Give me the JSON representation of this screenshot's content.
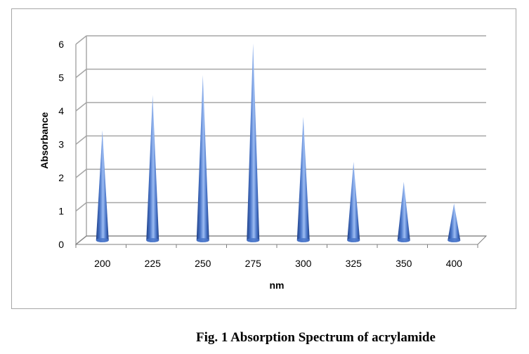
{
  "caption": "Fig. 1 Absorption Spectrum of acrylamide",
  "chart_data": {
    "type": "bar",
    "style": "3d-cone",
    "categories": [
      "200",
      "225",
      "250",
      "275",
      "300",
      "325",
      "350",
      "400"
    ],
    "values": [
      3.3,
      4.35,
      4.95,
      5.9,
      3.7,
      2.35,
      1.75,
      1.1
    ],
    "xlabel": "nm",
    "ylabel": "Absorbance",
    "ylim": [
      0,
      6
    ],
    "yticks": [
      "0",
      "1",
      "2",
      "3",
      "4",
      "5",
      "6"
    ],
    "grid": true,
    "legend": "none",
    "colors": {
      "cone": "#4a76c9",
      "cone_dark": "#1f3f86",
      "cone_light": "#9cbcf2",
      "grid": "#a6a6a6",
      "axis": "#7f7f7f"
    }
  }
}
